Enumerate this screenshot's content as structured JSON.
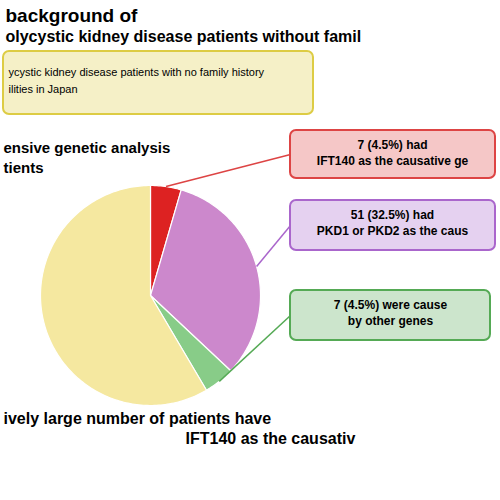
{
  "chart_data": {
    "type": "pie",
    "title": "background of",
    "subtitle": "olycystic kidney disease patients without famil",
    "values": [
      4.5,
      32.5,
      4.5,
      58.5
    ],
    "colors": [
      "#dd2222",
      "#cc88cc",
      "#88cc88",
      "#f5e8a0"
    ],
    "annotations": [
      {
        "text": [
          "ycystic kidney disease patients with no family history",
          "ilities in Japan"
        ],
        "color": "#ddcc44"
      },
      {
        "text": [
          "ensive genetic analysis",
          "tients"
        ]
      },
      {
        "text": [
          "7 (4.5%) had",
          "IFT140 as the causative ge"
        ],
        "color": "#dd4444"
      },
      {
        "text": [
          "51 (32.5%) had",
          "PKD1 or PKD2 as the caus"
        ],
        "color": "#aa66cc"
      },
      {
        "text": [
          "7 (4.5%) were cause",
          "by other genes"
        ],
        "color": "#55aa55"
      },
      {
        "text": [
          "ively large number of patients have",
          "IFT140 as the causativ"
        ]
      }
    ]
  }
}
